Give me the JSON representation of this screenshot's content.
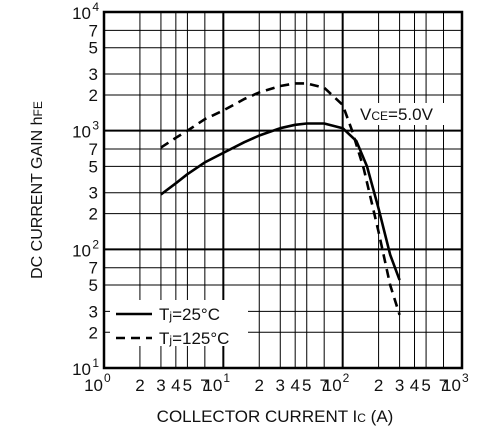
{
  "chart_data": {
    "type": "line",
    "xlabel": "COLLECTOR CURRENT",
    "xlabel_symbol": "I",
    "xlabel_subscript": "C",
    "xlabel_unit": "(A)",
    "ylabel": "DC CURRENT GAIN",
    "ylabel_symbol": "h",
    "ylabel_subscript": "FE",
    "xscale": "log",
    "yscale": "log",
    "xlim": [
      1,
      1000
    ],
    "ylim": [
      10,
      10000
    ],
    "grid": true,
    "legend_position": "bottom-left",
    "x_major_ticks": [
      {
        "base": "10",
        "exp": "0",
        "value": 1
      },
      {
        "base": "10",
        "exp": "1",
        "value": 10
      },
      {
        "base": "10",
        "exp": "2",
        "value": 100
      },
      {
        "base": "10",
        "exp": "3",
        "value": 1000
      }
    ],
    "x_minor_labels": [
      "2",
      "3",
      "4",
      "5",
      "7"
    ],
    "y_major_ticks": [
      {
        "base": "10",
        "exp": "1",
        "value": 10
      },
      {
        "base": "10",
        "exp": "2",
        "value": 100
      },
      {
        "base": "10",
        "exp": "3",
        "value": 1000
      },
      {
        "base": "10",
        "exp": "4",
        "value": 10000
      }
    ],
    "y_minor_labels": [
      "2",
      "3",
      "5",
      "7"
    ],
    "annotation": {
      "prefix": "V",
      "sub": "CE",
      "suffix": "=5.0V"
    },
    "series": [
      {
        "name": "Tj=25°C",
        "legend_prefix": "T",
        "legend_sub": "j",
        "legend_suffix": "=25°C",
        "style": "solid",
        "x": [
          3,
          4,
          5,
          7,
          10,
          15,
          20,
          30,
          40,
          50,
          70,
          100,
          130,
          160,
          200,
          250,
          300
        ],
        "y": [
          290,
          360,
          430,
          540,
          650,
          800,
          910,
          1050,
          1120,
          1150,
          1150,
          1050,
          820,
          500,
          220,
          90,
          55
        ]
      },
      {
        "name": "Tj=125°C",
        "legend_prefix": "T",
        "legend_sub": "j",
        "legend_suffix": "=125°C",
        "style": "dashed",
        "x": [
          3,
          4,
          5,
          7,
          10,
          15,
          20,
          30,
          40,
          50,
          70,
          100,
          120,
          150,
          200,
          250,
          300
        ],
        "y": [
          720,
          870,
          1000,
          1250,
          1480,
          1850,
          2100,
          2380,
          2500,
          2500,
          2300,
          1650,
          1000,
          480,
          140,
          50,
          28
        ]
      }
    ]
  }
}
